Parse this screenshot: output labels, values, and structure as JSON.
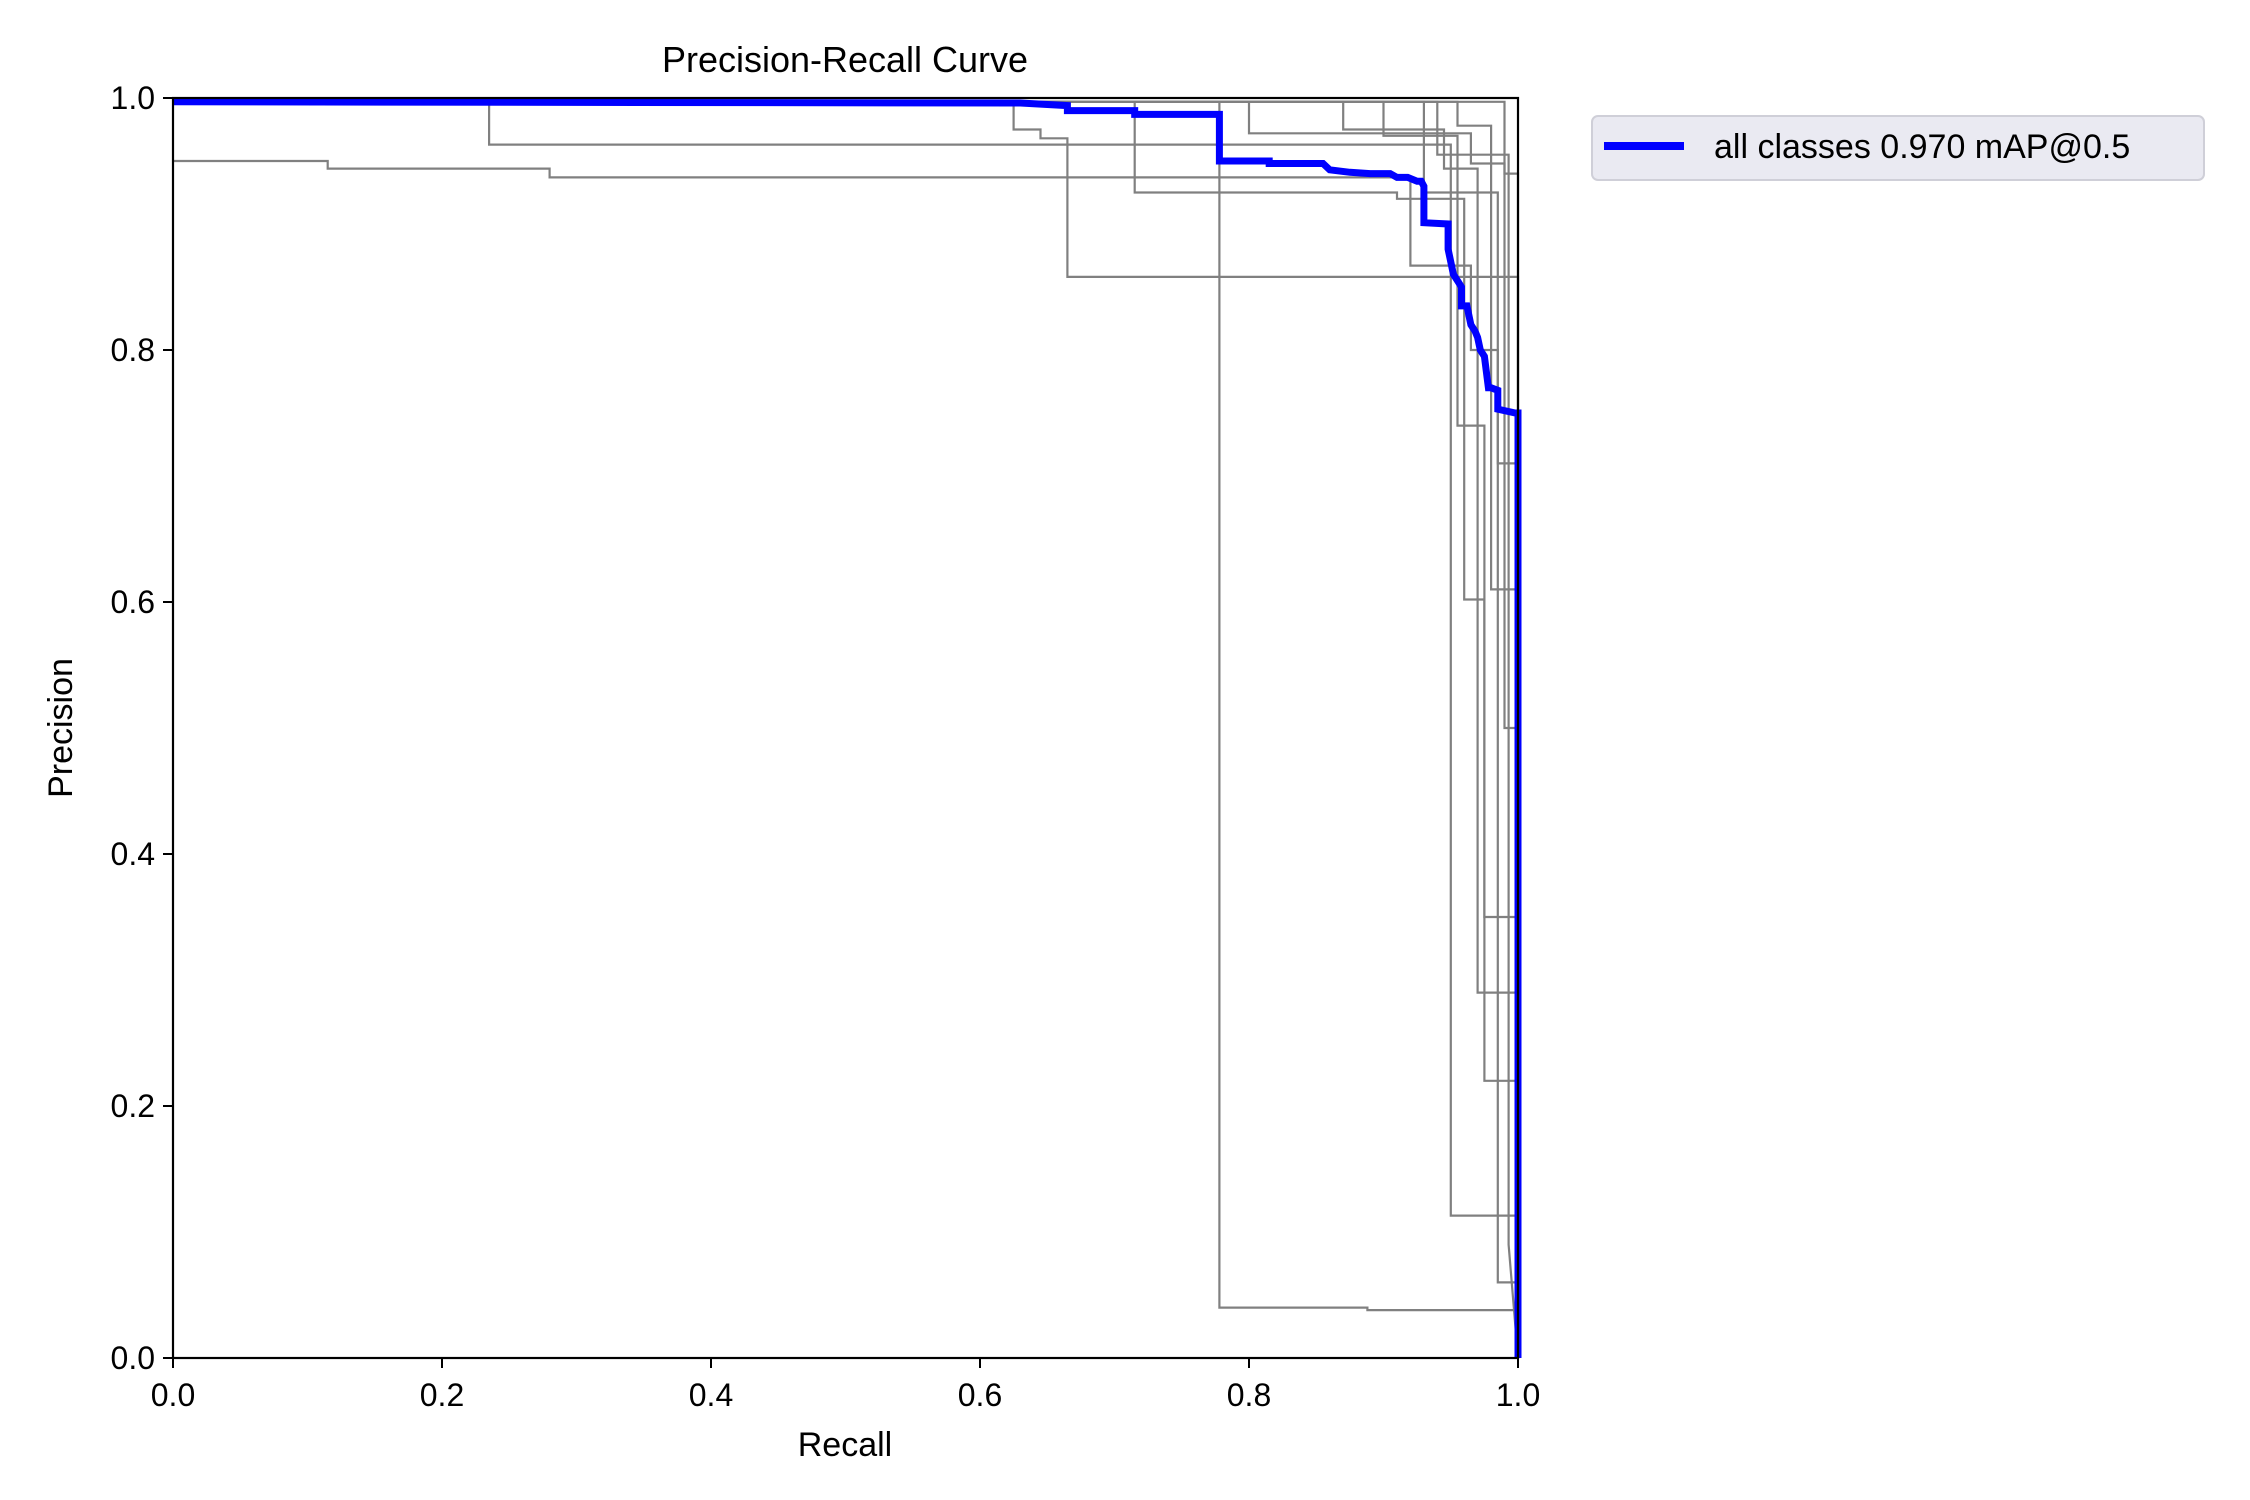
{
  "chart_data": {
    "type": "line",
    "title": "Precision-Recall Curve",
    "xlabel": "Recall",
    "ylabel": "Precision",
    "xlim": [
      0.0,
      1.0
    ],
    "ylim": [
      0.0,
      1.0
    ],
    "xticks": [
      "0.0",
      "0.2",
      "0.4",
      "0.6",
      "0.8",
      "1.0"
    ],
    "yticks": [
      "0.0",
      "0.2",
      "0.4",
      "0.6",
      "0.8",
      "1.0"
    ],
    "grid": false,
    "legend_position": "outside top-right",
    "series": [
      {
        "name": "all classes 0.970 mAP@0.5",
        "color": "#0000ff",
        "role": "mean",
        "x": [
          0.0,
          0.63,
          0.665,
          0.665,
          0.715,
          0.715,
          0.778,
          0.778,
          0.815,
          0.815,
          0.855,
          0.86,
          0.875,
          0.89,
          0.905,
          0.91,
          0.918,
          0.925,
          0.928,
          0.93,
          0.93,
          0.948,
          0.948,
          0.952,
          0.955,
          0.958,
          0.958,
          0.962,
          0.965,
          0.968,
          0.97,
          0.972,
          0.975,
          0.978,
          0.98,
          0.985,
          0.985,
          0.998,
          1.0,
          1.0
        ],
        "y": [
          0.997,
          0.996,
          0.994,
          0.99,
          0.99,
          0.987,
          0.987,
          0.95,
          0.95,
          0.948,
          0.948,
          0.943,
          0.941,
          0.94,
          0.94,
          0.937,
          0.937,
          0.934,
          0.934,
          0.93,
          0.901,
          0.9,
          0.88,
          0.86,
          0.855,
          0.85,
          0.835,
          0.835,
          0.82,
          0.815,
          0.81,
          0.8,
          0.795,
          0.77,
          0.77,
          0.768,
          0.753,
          0.75,
          0.75,
          0.0
        ]
      },
      {
        "color": "#808080",
        "x": [
          0,
          0.115,
          0.115,
          0.28,
          0.28,
          0.92,
          0.92,
          0.965,
          0.965,
          0.985,
          0.985,
          1.0
        ],
        "y": [
          0.95,
          0.95,
          0.944,
          0.944,
          0.937,
          0.937,
          0.867,
          0.867,
          0.8,
          0.8,
          0.06,
          0.06
        ]
      },
      {
        "color": "#808080",
        "x": [
          0,
          0.235,
          0.235,
          0.95,
          0.95,
          1.0
        ],
        "y": [
          0.997,
          0.997,
          0.963,
          0.963,
          0.113,
          0.113
        ]
      },
      {
        "color": "#808080",
        "x": [
          0,
          0.625,
          0.625,
          0.645,
          0.645,
          0.665,
          0.665,
          1.0,
          1.0
        ],
        "y": [
          0.997,
          0.997,
          0.975,
          0.975,
          0.968,
          0.968,
          0.858,
          0.858,
          0.0
        ]
      },
      {
        "color": "#808080",
        "x": [
          0,
          0.778,
          0.778,
          0.888,
          0.888,
          1.0
        ],
        "y": [
          0.997,
          0.997,
          0.04,
          0.04,
          0.038,
          0.038
        ]
      },
      {
        "color": "#808080",
        "x": [
          0,
          0.715,
          0.715,
          0.91,
          0.91,
          0.96,
          0.96,
          0.975,
          0.975,
          1.0
        ],
        "y": [
          0.997,
          0.997,
          0.925,
          0.925,
          0.92,
          0.92,
          0.602,
          0.602,
          0.22,
          0.22
        ]
      },
      {
        "color": "#808080",
        "x": [
          0,
          0.8,
          0.8,
          0.965,
          0.965,
          0.99,
          0.99,
          1.0
        ],
        "y": [
          0.997,
          0.997,
          0.972,
          0.972,
          0.948,
          0.948,
          0.5,
          0.5
        ]
      },
      {
        "color": "#808080",
        "x": [
          0,
          0.87,
          0.87,
          0.945,
          0.945,
          0.97,
          0.97,
          1.0
        ],
        "y": [
          0.997,
          0.997,
          0.975,
          0.975,
          0.944,
          0.944,
          0.29,
          0.29
        ]
      },
      {
        "color": "#808080",
        "x": [
          0,
          0.9,
          0.9,
          0.955,
          0.955,
          0.975,
          0.975,
          1.0
        ],
        "y": [
          0.997,
          0.997,
          0.97,
          0.97,
          0.74,
          0.74,
          0.35,
          0.35
        ]
      },
      {
        "color": "#808080",
        "x": [
          0,
          0.955,
          0.955,
          0.98,
          0.98,
          1.0
        ],
        "y": [
          0.997,
          0.997,
          0.978,
          0.978,
          0.61,
          0.61
        ]
      },
      {
        "color": "#808080",
        "x": [
          0,
          0.93,
          0.93,
          0.985,
          0.985,
          1.0
        ],
        "y": [
          0.997,
          0.997,
          0.925,
          0.925,
          0.71,
          0.71
        ]
      },
      {
        "color": "#808080",
        "x": [
          0,
          0.99,
          0.99,
          1.0,
          1.0
        ],
        "y": [
          0.997,
          0.997,
          0.94,
          0.94,
          0.0
        ]
      },
      {
        "color": "#808080",
        "x": [
          0,
          0.94,
          0.94,
          0.993,
          0.993,
          1.0
        ],
        "y": [
          0.997,
          0.997,
          0.955,
          0.955,
          0.09,
          0.0
        ]
      }
    ]
  }
}
